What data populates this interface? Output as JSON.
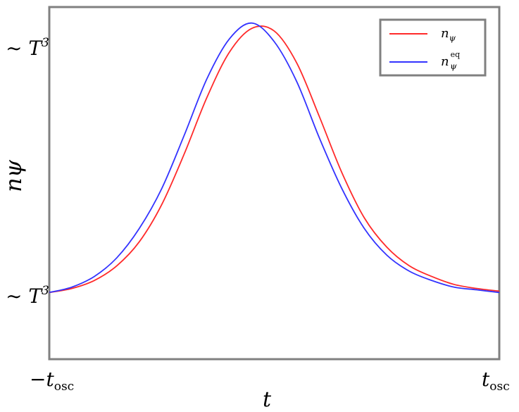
{
  "chart_data": {
    "type": "line",
    "xlabel": "t",
    "ylabel": "nψ",
    "x_ticks": [
      {
        "label": "−t",
        "sub": "osc",
        "x": -1
      },
      {
        "label": "t",
        "sub": "osc",
        "x": 1
      }
    ],
    "y_ticks": [
      {
        "label": "∼ T",
        "sup": "3",
        "y": 1
      },
      {
        "label": "∼ T",
        "sup": "3",
        "y": 0
      }
    ],
    "xlim": [
      -1,
      1
    ],
    "ylim": [
      -0.25,
      1.07
    ],
    "grid": false,
    "legend_position": "top-right",
    "series": [
      {
        "name": "n",
        "name_sub": "ψ",
        "name_sup": "",
        "color": "#ff2a2a",
        "x": [
          -1,
          -0.9,
          -0.8,
          -0.7,
          -0.6,
          -0.5,
          -0.4,
          -0.3,
          -0.2,
          -0.1,
          0,
          0.1,
          0.2,
          0.3,
          0.4,
          0.5,
          0.6,
          0.7,
          0.8,
          0.9,
          1
        ],
        "y": [
          0,
          0.015,
          0.045,
          0.1,
          0.19,
          0.33,
          0.52,
          0.73,
          0.9,
          0.99,
          0.98,
          0.86,
          0.66,
          0.45,
          0.28,
          0.17,
          0.1,
          0.06,
          0.03,
          0.015,
          0.005
        ]
      },
      {
        "name": "n",
        "name_sub": "ψ",
        "name_sup": "eq",
        "color": "#3333ff",
        "x": [
          -1,
          -0.9,
          -0.8,
          -0.7,
          -0.6,
          -0.5,
          -0.4,
          -0.3,
          -0.2,
          -0.1,
          0,
          0.1,
          0.2,
          0.3,
          0.4,
          0.5,
          0.6,
          0.7,
          0.8,
          0.9,
          1
        ],
        "y": [
          0,
          0.02,
          0.06,
          0.13,
          0.24,
          0.39,
          0.59,
          0.8,
          0.95,
          1.01,
          0.94,
          0.79,
          0.58,
          0.39,
          0.24,
          0.14,
          0.08,
          0.045,
          0.02,
          0.01,
          0
        ]
      }
    ]
  }
}
